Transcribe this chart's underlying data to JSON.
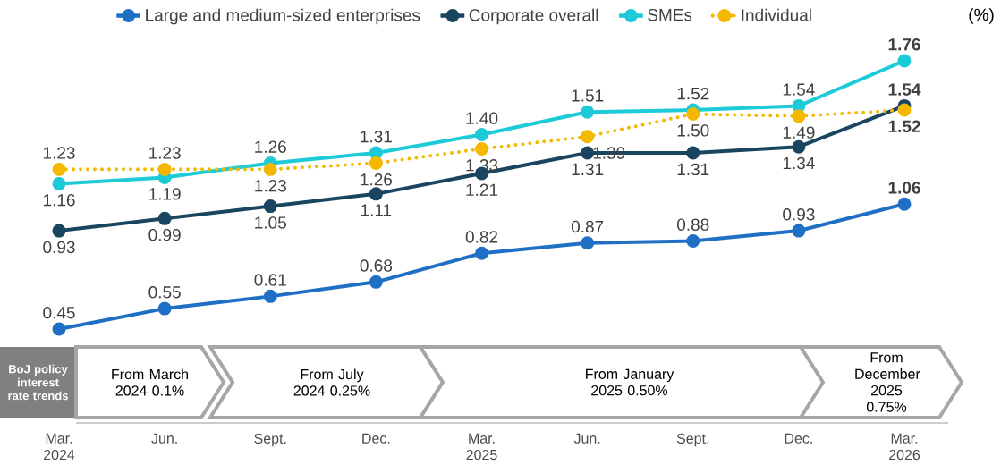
{
  "chart_data": {
    "type": "line",
    "ylabel": "(%)",
    "categories": [
      "Mar. 2024",
      "Jun.",
      "Sept.",
      "Dec.",
      "Mar. 2025",
      "Jun.",
      "Sept.",
      "Dec.",
      "Mar. 2026"
    ],
    "series": [
      {
        "name": "Large and medium-sized enterprises",
        "color": "#1f6fc5",
        "values": [
          0.45,
          0.55,
          0.61,
          0.68,
          0.82,
          0.87,
          0.88,
          0.93,
          1.06
        ],
        "value_labels": [
          "0.45",
          "0.55",
          "0.61",
          "0.68",
          "0.82",
          "0.87",
          "0.88",
          "0.93",
          "1.06"
        ]
      },
      {
        "name": "Corporate overall",
        "color": "#1a4560",
        "values": [
          0.93,
          0.99,
          1.05,
          1.11,
          1.21,
          1.31,
          1.31,
          1.34,
          1.54
        ],
        "value_labels": [
          "0.93",
          "0.99",
          "1.05",
          "1.11",
          "1.21",
          "1.31",
          "1.31",
          "1.34",
          "1.54"
        ]
      },
      {
        "name": "SMEs",
        "color": "#1ccad8",
        "values": [
          1.16,
          1.19,
          1.26,
          1.31,
          1.4,
          1.51,
          1.52,
          1.54,
          1.76
        ],
        "value_labels": [
          "1.16",
          "1.19",
          "1.26",
          "1.31",
          "1.40",
          "1.51",
          "1.52",
          "1.54",
          "1.76"
        ]
      },
      {
        "name": "Individual",
        "color": "#f5b800",
        "line_style": "dotted",
        "values": [
          1.23,
          1.23,
          1.23,
          1.26,
          1.33,
          1.39,
          1.5,
          1.49,
          1.52
        ],
        "value_labels": [
          "1.23",
          "1.23",
          "1.23",
          "1.26",
          "1.33",
          "1.39",
          "1.50",
          "1.49",
          "1.52"
        ]
      }
    ],
    "legend": "top",
    "marker": "circle",
    "annotations": [
      "BoJ policy interest rate trends",
      "From March 2024 0.1%",
      "From July 2024 0.25%",
      "From January 2025 0.50%",
      "From December 2025 0.75%"
    ]
  }
}
